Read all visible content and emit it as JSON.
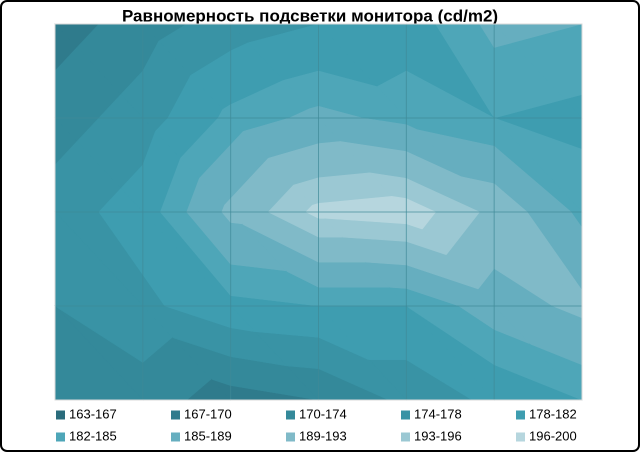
{
  "chart_data": {
    "type": "contour",
    "title": "Равномерность  подсветки монитора  (cd/m2)",
    "z": [
      [
        168,
        172,
        176,
        178,
        180,
        186,
        185
      ],
      [
        172,
        176,
        183,
        186,
        184,
        182,
        181
      ],
      [
        176,
        180,
        190,
        197,
        198,
        192,
        184
      ],
      [
        174,
        177,
        181,
        182,
        182,
        187,
        190
      ],
      [
        172,
        172,
        168,
        170,
        175,
        179,
        182
      ]
    ],
    "levels": [
      163,
      167,
      170,
      174,
      178,
      182,
      185,
      189,
      193,
      196,
      200
    ],
    "series": [
      {
        "name": "163-167",
        "color": "#2a6c7c"
      },
      {
        "name": "167-170",
        "color": "#2f7b8c"
      },
      {
        "name": "170-174",
        "color": "#34899a"
      },
      {
        "name": "174-178",
        "color": "#3993a5"
      },
      {
        "name": "178-182",
        "color": "#3e9db0"
      },
      {
        "name": "182-185",
        "color": "#4ea6b8"
      },
      {
        "name": "185-189",
        "color": "#66aebf"
      },
      {
        "name": "189-193",
        "color": "#80bac8"
      },
      {
        "name": "193-196",
        "color": "#9bc8d3"
      },
      {
        "name": "196-200",
        "color": "#b6d6de"
      }
    ]
  }
}
